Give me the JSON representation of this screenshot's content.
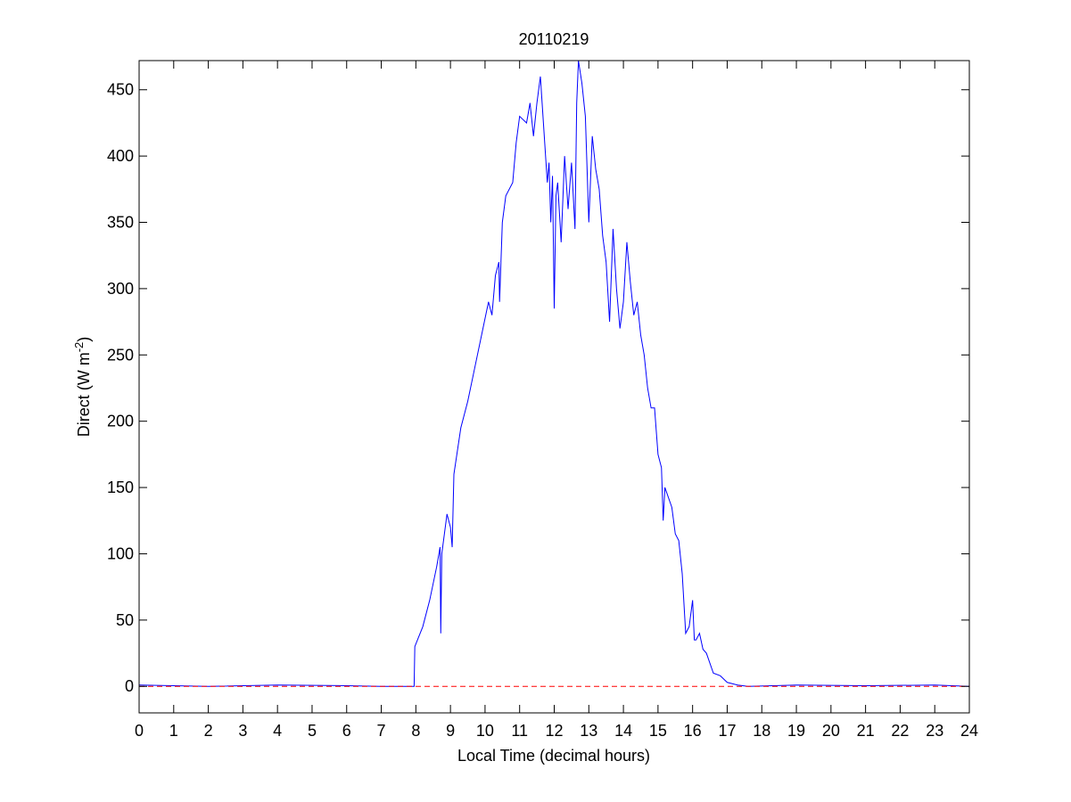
{
  "chart_data": {
    "type": "line",
    "title": "20110219",
    "xlabel": "Local Time (decimal hours)",
    "ylabel": [
      "Direct (W m",
      "-2",
      ")"
    ],
    "xlim": [
      0,
      24
    ],
    "xticks": [
      0,
      1,
      2,
      3,
      4,
      5,
      6,
      7,
      8,
      9,
      10,
      11,
      12,
      13,
      14,
      15,
      16,
      17,
      18,
      19,
      20,
      21,
      22,
      23,
      24
    ],
    "ylim": [
      -20,
      472
    ],
    "yticks": [
      0,
      50,
      100,
      150,
      200,
      250,
      300,
      350,
      400,
      450
    ],
    "grid": false,
    "series": [
      {
        "color": "#0000ff",
        "linestyle": "solid",
        "x": [
          0,
          2,
          4,
          6,
          7,
          7.95,
          7.97,
          8.2,
          8.4,
          8.6,
          8.7,
          8.72,
          8.75,
          8.9,
          9.0,
          9.05,
          9.1,
          9.3,
          9.5,
          9.7,
          9.9,
          10.1,
          10.2,
          10.3,
          10.4,
          10.42,
          10.5,
          10.6,
          10.8,
          10.9,
          11.0,
          11.2,
          11.3,
          11.4,
          11.5,
          11.6,
          11.7,
          11.8,
          11.85,
          11.9,
          11.95,
          12.0,
          12.05,
          12.1,
          12.2,
          12.3,
          12.4,
          12.5,
          12.6,
          12.65,
          12.7,
          12.8,
          12.9,
          13.0,
          13.1,
          13.2,
          13.3,
          13.4,
          13.5,
          13.6,
          13.7,
          13.8,
          13.9,
          14.0,
          14.1,
          14.2,
          14.3,
          14.4,
          14.5,
          14.6,
          14.7,
          14.8,
          14.9,
          15.0,
          15.1,
          15.15,
          15.2,
          15.4,
          15.5,
          15.6,
          15.7,
          15.8,
          15.9,
          16.0,
          16.05,
          16.1,
          16.2,
          16.3,
          16.4,
          16.6,
          16.8,
          17.0,
          17.3,
          17.6,
          19,
          21,
          23,
          24
        ],
        "values": [
          1,
          0,
          1,
          0.5,
          0,
          0,
          30,
          45,
          65,
          90,
          105,
          40,
          100,
          130,
          120,
          105,
          160,
          195,
          215,
          240,
          265,
          290,
          280,
          310,
          320,
          290,
          350,
          370,
          380,
          410,
          430,
          425,
          440,
          415,
          440,
          460,
          420,
          380,
          395,
          350,
          385,
          285,
          370,
          380,
          335,
          400,
          360,
          395,
          345,
          440,
          472,
          455,
          430,
          350,
          415,
          390,
          375,
          340,
          320,
          275,
          345,
          300,
          270,
          290,
          335,
          305,
          280,
          290,
          265,
          250,
          225,
          210,
          210,
          175,
          165,
          125,
          150,
          135,
          115,
          110,
          85,
          40,
          45,
          65,
          35,
          35,
          40,
          28,
          25,
          10,
          8,
          3,
          1,
          0,
          1,
          0.5,
          1,
          0
        ]
      },
      {
        "color": "#ff0000",
        "linestyle": "dashed",
        "x": [
          0,
          24
        ],
        "values": [
          0,
          0
        ]
      }
    ]
  }
}
